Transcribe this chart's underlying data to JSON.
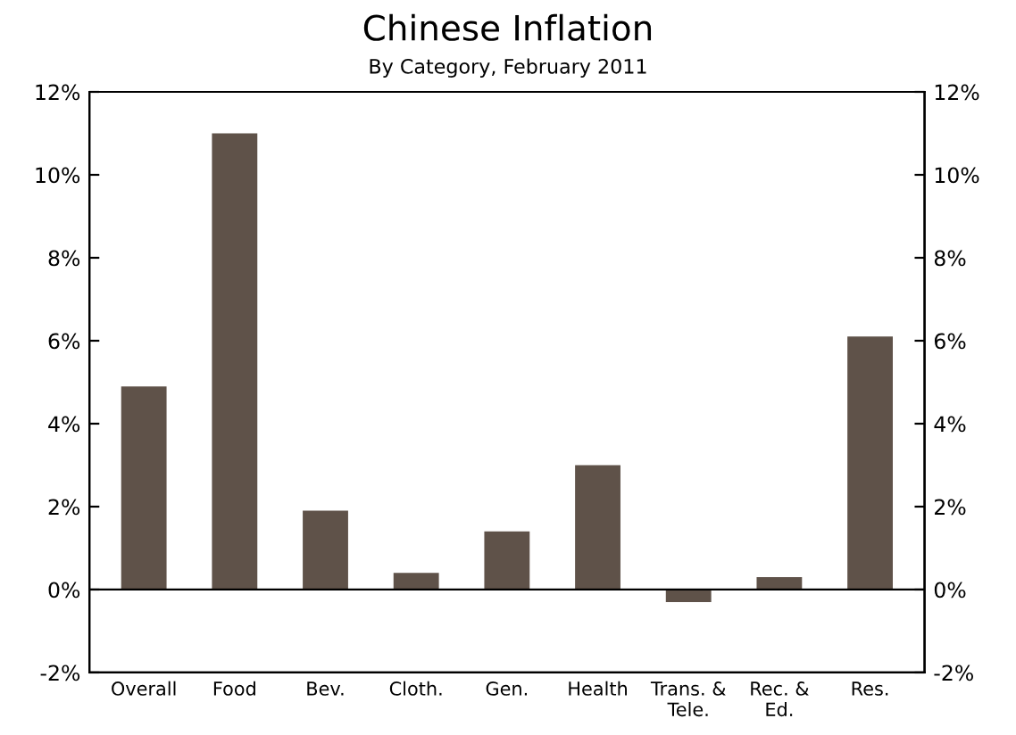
{
  "chart_data": {
    "type": "bar",
    "title": "Chinese Inflation",
    "subtitle": "By Category, February 2011",
    "categories": [
      "Overall",
      "Food",
      "Bev.",
      "Cloth.",
      "Gen.",
      "Health",
      "Trans. &\nTele.",
      "Rec. &\nEd.",
      "Res."
    ],
    "values": [
      4.9,
      11.0,
      1.9,
      0.4,
      1.4,
      3.0,
      -0.3,
      0.3,
      6.1
    ],
    "color": "#5f5249",
    "ylim": [
      -2,
      12
    ],
    "yticks": [
      {
        "value": -2,
        "label": "-2%"
      },
      {
        "value": 0,
        "label": "0%"
      },
      {
        "value": 2,
        "label": "2%"
      },
      {
        "value": 4,
        "label": "4%"
      },
      {
        "value": 6,
        "label": "6%"
      },
      {
        "value": 8,
        "label": "8%"
      },
      {
        "value": 10,
        "label": "10%"
      },
      {
        "value": 12,
        "label": "12%"
      }
    ],
    "y2lim": [
      -2,
      12
    ],
    "y2ticks": [
      {
        "value": -2,
        "label": "-2%"
      },
      {
        "value": 0,
        "label": "0%"
      },
      {
        "value": 2,
        "label": "2%"
      },
      {
        "value": 4,
        "label": "4%"
      },
      {
        "value": 6,
        "label": "6%"
      },
      {
        "value": 8,
        "label": "8%"
      },
      {
        "value": 10,
        "label": "10%"
      },
      {
        "value": 12,
        "label": "12%"
      }
    ],
    "ref_lines": [
      {
        "axis": "y",
        "value": 0,
        "color": "#000000"
      }
    ],
    "grid": false,
    "legend": false
  }
}
